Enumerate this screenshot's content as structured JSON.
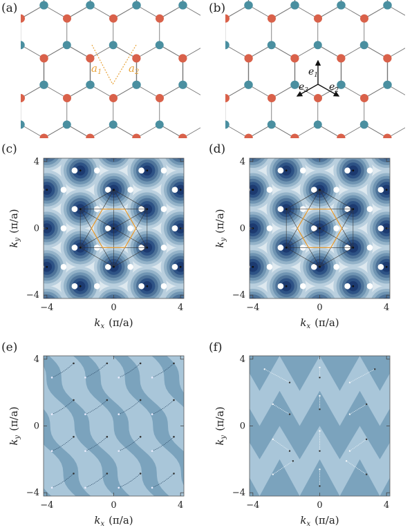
{
  "figure": {
    "panel_labels": [
      "(a)",
      "(b)",
      "(c)",
      "(d)",
      "(e)",
      "(f)"
    ],
    "lattice_a": {
      "vector_labels": [
        "a",
        "a"
      ],
      "vector_subscripts": [
        "1",
        "2"
      ],
      "colors": {
        "site_A": "#d9614a",
        "site_B": "#4a8fa0",
        "bond": "#777777",
        "vector": "#e8a33a"
      }
    },
    "lattice_b": {
      "bond_labels": [
        "e",
        "e",
        "e"
      ],
      "bond_subscripts": [
        "1",
        "2",
        "3"
      ],
      "colors": {
        "site_A": "#d9614a",
        "site_B": "#4a8fa0",
        "bond": "#777777",
        "arrow": "#111111"
      }
    },
    "axes": {
      "xlabel_k": "k",
      "xlabel_sub": "x",
      "xlabel_unit": "(π/a)",
      "ylabel_k": "k",
      "ylabel_sub": "y",
      "ylabel_unit": "(π/a)",
      "ticks": [
        "−4",
        "0",
        "4"
      ]
    },
    "colors": {
      "contour_levels": [
        "#ffffff",
        "#dde8ef",
        "#b9cfde",
        "#93b2c8",
        "#6f94b2",
        "#4e7399",
        "#2d5285",
        "#1c3a70"
      ],
      "brillouin_zone": "#e39a32",
      "reciprocal_lattice": "#333333",
      "phase_light": "#a9c6d9",
      "phase_dark": "#7ba3bd"
    }
  },
  "chart_data": [
    {
      "panel": "c",
      "type": "heatmap",
      "title": "",
      "xlabel": "k_x (π/a)",
      "ylabel": "k_y (π/a)",
      "xlim": [
        -4.2,
        4.2
      ],
      "ylim": [
        -4.2,
        4.2
      ],
      "xticks": [
        -4,
        0,
        4
      ],
      "yticks": [
        -4,
        0,
        4
      ],
      "reciprocal_points": [
        [
          0,
          0
        ],
        [
          -2,
          1.1547
        ],
        [
          -2,
          -1.1547
        ],
        [
          2,
          1.1547
        ],
        [
          2,
          -1.1547
        ],
        [
          0,
          2.3094
        ],
        [
          0,
          -2.3094
        ],
        [
          -2,
          3.4641
        ],
        [
          2,
          3.4641
        ],
        [
          -2,
          -3.4641
        ],
        [
          2,
          -3.4641
        ],
        [
          -4,
          0
        ],
        [
          4,
          0
        ],
        [
          -4,
          2.3094
        ],
        [
          4,
          2.3094
        ],
        [
          -4,
          -2.3094
        ],
        [
          4,
          -2.3094
        ]
      ]
    },
    {
      "panel": "d",
      "type": "heatmap",
      "title": "",
      "xlabel": "k_x (π/a)",
      "ylabel": "k_y (π/a)",
      "xlim": [
        -4.2,
        4.2
      ],
      "ylim": [
        -4.2,
        4.2
      ],
      "xticks": [
        -4,
        0,
        4
      ],
      "yticks": [
        -4,
        0,
        4
      ],
      "reciprocal_points": [
        [
          0,
          0
        ],
        [
          -2,
          1.1547
        ],
        [
          -2,
          -1.1547
        ],
        [
          2,
          1.1547
        ],
        [
          2,
          -1.1547
        ],
        [
          0,
          2.3094
        ],
        [
          0,
          -2.3094
        ],
        [
          -2,
          3.4641
        ],
        [
          2,
          3.4641
        ],
        [
          -2,
          -3.4641
        ],
        [
          2,
          -3.4641
        ],
        [
          -4,
          0
        ],
        [
          4,
          0
        ],
        [
          -4,
          2.3094
        ],
        [
          4,
          2.3094
        ],
        [
          -4,
          -2.3094
        ],
        [
          4,
          -2.3094
        ]
      ]
    },
    {
      "panel": "e",
      "type": "heatmap",
      "title": "",
      "xlabel": "k_x (π/a)",
      "ylabel": "k_y (π/a)",
      "xlim": [
        -4.2,
        4.2
      ],
      "ylim": [
        -4.2,
        4.2
      ],
      "xticks": [
        -4,
        0,
        4
      ],
      "yticks": [
        -4,
        0,
        4
      ],
      "stripe_slope": -1.7,
      "stripe_spacing": 2.35
    },
    {
      "panel": "f",
      "type": "heatmap",
      "title": "",
      "xlabel": "k_x (π/a)",
      "ylabel": "k_y (π/a)",
      "xlim": [
        -4.2,
        4.2
      ],
      "ylim": [
        -4.2,
        4.2
      ],
      "xticks": [
        -4,
        0,
        4
      ],
      "yticks": [
        -4,
        0,
        4
      ],
      "triangle_rows": [
        -4.2,
        -2.0,
        0.0,
        2.1,
        4.2
      ],
      "triangle_period": 2.4
    }
  ]
}
